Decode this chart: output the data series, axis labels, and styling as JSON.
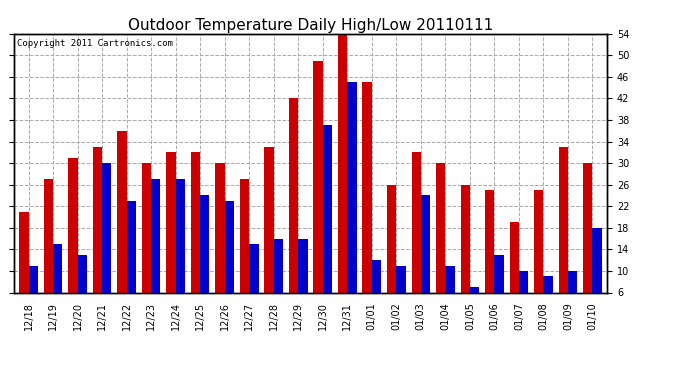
{
  "title": "Outdoor Temperature Daily High/Low 20110111",
  "copyright": "Copyright 2011 Cartronics.com",
  "dates": [
    "12/18",
    "12/19",
    "12/20",
    "12/21",
    "12/22",
    "12/23",
    "12/24",
    "12/25",
    "12/26",
    "12/27",
    "12/28",
    "12/29",
    "12/30",
    "12/31",
    "01/01",
    "01/02",
    "01/03",
    "01/04",
    "01/05",
    "01/06",
    "01/07",
    "01/08",
    "01/09",
    "01/10"
  ],
  "highs": [
    21,
    27,
    31,
    33,
    36,
    30,
    32,
    32,
    30,
    27,
    33,
    42,
    49,
    54,
    45,
    26,
    32,
    30,
    26,
    25,
    19,
    25,
    33,
    30
  ],
  "lows": [
    11,
    15,
    13,
    30,
    23,
    27,
    27,
    24,
    23,
    15,
    16,
    16,
    37,
    45,
    12,
    11,
    24,
    11,
    7,
    13,
    10,
    9,
    10,
    18
  ],
  "high_color": "#cc0000",
  "low_color": "#0000cc",
  "bg_color": "#ffffff",
  "grid_color": "#aaaaaa",
  "ylim_min": 6.0,
  "ylim_max": 54.0,
  "yticks": [
    6.0,
    10.0,
    14.0,
    18.0,
    22.0,
    26.0,
    30.0,
    34.0,
    38.0,
    42.0,
    46.0,
    50.0,
    54.0
  ],
  "bar_width": 0.38,
  "title_fontsize": 11,
  "tick_fontsize": 7,
  "copyright_fontsize": 6.5,
  "fig_width": 6.9,
  "fig_height": 3.75,
  "dpi": 100
}
